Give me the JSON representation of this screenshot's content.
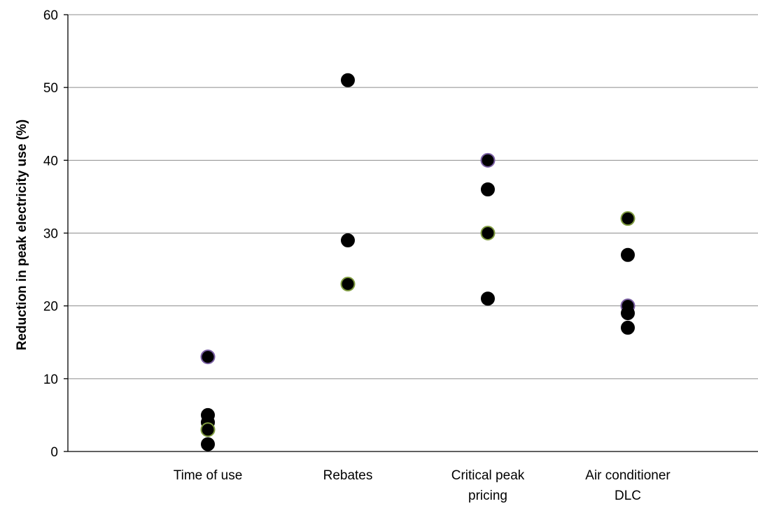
{
  "chart_data": {
    "type": "scatter",
    "title": "",
    "xlabel": "",
    "ylabel": "Reduction in peak electricity use (%)",
    "ylim": [
      0,
      60
    ],
    "yticks": [
      0,
      10,
      20,
      30,
      40,
      50,
      60
    ],
    "grid": "horizontal",
    "categories": [
      [
        "Time of use"
      ],
      [
        "Rebates"
      ],
      [
        "Critical peak",
        "pricing"
      ],
      [
        "Air conditioner",
        "DLC"
      ]
    ],
    "points": [
      {
        "category": 0,
        "y": 13,
        "outline": "#7a5fa3"
      },
      {
        "category": 0,
        "y": 5,
        "outline": "#000000"
      },
      {
        "category": 0,
        "y": 4,
        "outline": "#000000"
      },
      {
        "category": 0,
        "y": 3,
        "outline": "#7f9b3f"
      },
      {
        "category": 0,
        "y": 1,
        "outline": "#000000"
      },
      {
        "category": 1,
        "y": 51,
        "outline": "#000000"
      },
      {
        "category": 1,
        "y": 29,
        "outline": "#000000"
      },
      {
        "category": 1,
        "y": 23,
        "outline": "#7f9b3f"
      },
      {
        "category": 2,
        "y": 40,
        "outline": "#7a5fa3"
      },
      {
        "category": 2,
        "y": 36,
        "outline": "#000000"
      },
      {
        "category": 2,
        "y": 30,
        "outline": "#7f9b3f"
      },
      {
        "category": 2,
        "y": 21,
        "outline": "#000000"
      },
      {
        "category": 3,
        "y": 32,
        "outline": "#7f9b3f"
      },
      {
        "category": 3,
        "y": 27,
        "outline": "#000000"
      },
      {
        "category": 3,
        "y": 20,
        "outline": "#7a5fa3"
      },
      {
        "category": 3,
        "y": 19,
        "outline": "#000000"
      },
      {
        "category": 3,
        "y": 17,
        "outline": "#000000"
      }
    ],
    "colors": {
      "marker_fill": "#000000",
      "gridline": "#8c8c8c",
      "axis": "#000000"
    }
  }
}
